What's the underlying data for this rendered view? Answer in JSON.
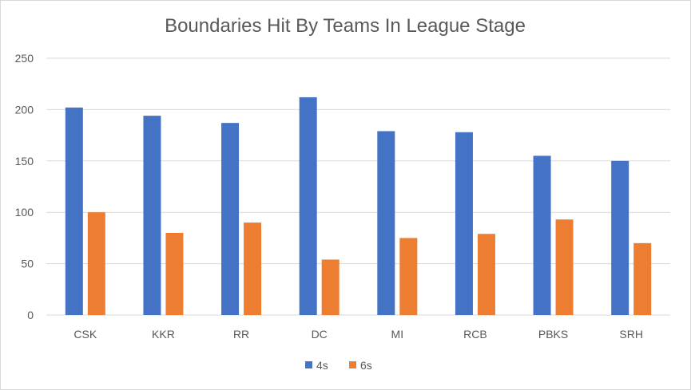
{
  "chart_data": {
    "type": "bar",
    "title": "Boundaries Hit By Teams In League Stage",
    "xlabel": "",
    "ylabel": "",
    "categories": [
      "CSK",
      "KKR",
      "RR",
      "DC",
      "MI",
      "RCB",
      "PBKS",
      "SRH"
    ],
    "series": [
      {
        "name": "4s",
        "color": "#4472C4",
        "values": [
          202,
          194,
          187,
          212,
          179,
          178,
          155,
          150
        ]
      },
      {
        "name": "6s",
        "color": "#ED7D31",
        "values": [
          100,
          80,
          90,
          54,
          75,
          79,
          93,
          70
        ]
      }
    ],
    "ylim": [
      0,
      250
    ],
    "yticks": [
      "0",
      "50",
      "100",
      "150",
      "200",
      "250"
    ],
    "grid": true,
    "legend_position": "bottom"
  }
}
